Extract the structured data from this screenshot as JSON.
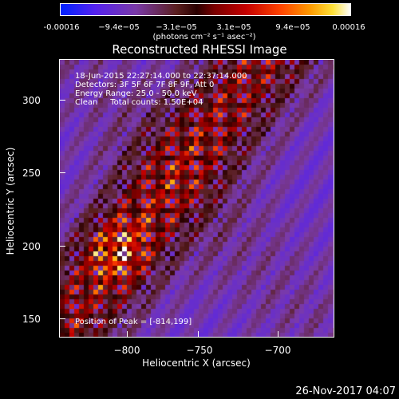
{
  "colorbar": {
    "ticks": [
      "-0.00016",
      "−9.4e−05",
      "−3.1e−05",
      "3.1e−05",
      "9.4e−05",
      "0.00016"
    ],
    "units": "(photons cm⁻² s⁻¹ asec⁻²)"
  },
  "plot": {
    "title": "Reconstructed RHESSI Image",
    "annotations": {
      "line1": "18-Jun-2015 22:27:14.000 to 22:37:14.000",
      "line2": "Detectors: 3F 5F 6F 7F 8F 9F, Att 0",
      "line3": "Energy Range: 25.0 - 50.0 keV",
      "line4": "Clean     Total counts: 1.50E+04",
      "peak": "Position of Peak = [-814,199]"
    },
    "xticks": [
      "−800",
      "−750",
      "−700"
    ],
    "yticks": [
      "300",
      "250",
      "200",
      "150"
    ],
    "xlabel": "Heliocentric X (arcsec)",
    "ylabel": "Heliocentric Y (arcsec)"
  },
  "footer": {
    "timestamp": "26-Nov-2017 04:07"
  },
  "chart_data": {
    "type": "heatmap",
    "title": "Reconstructed RHESSI Image",
    "xlabel": "Heliocentric X (arcsec)",
    "ylabel": "Heliocentric Y (arcsec)",
    "xlim": [
      -848,
      -682
    ],
    "ylim": [
      137,
      325
    ],
    "color_range": [
      -0.00016,
      0.00016
    ],
    "colorbar_ticks": [
      -0.00016,
      -9.4e-05,
      -3.1e-05,
      3.1e-05,
      9.4e-05,
      0.00016
    ],
    "peak": [
      -814,
      199
    ]
  }
}
